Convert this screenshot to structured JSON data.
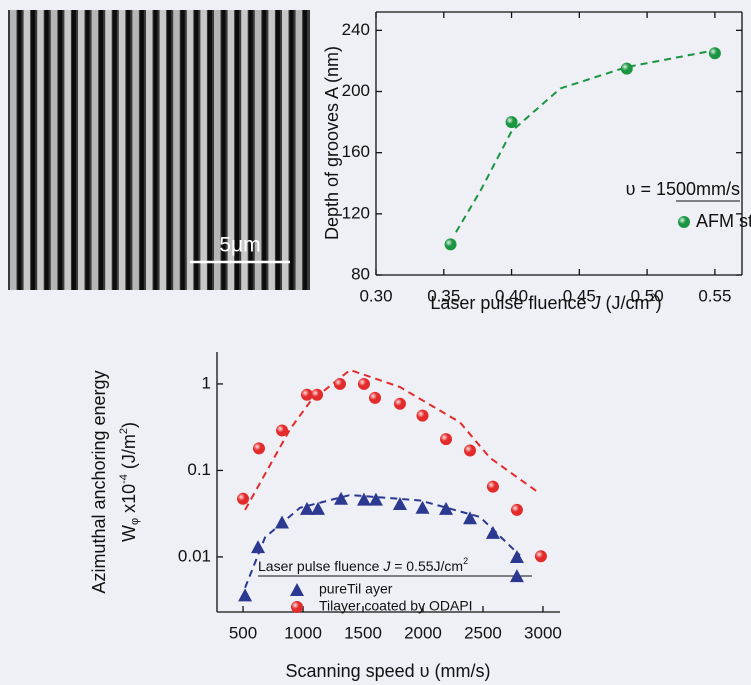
{
  "image": {
    "scale_label": "5μm"
  },
  "chart_data": [
    {
      "type": "scatter",
      "x_label": [
        "Laser pulse fluence ",
        "J",
        " (J/cm",
        "2",
        ")"
      ],
      "y_label": "Depth of grooves A (nm)",
      "xlim": [
        0.3,
        0.57
      ],
      "ylim": [
        80,
        252
      ],
      "xticks": [
        {
          "value": 0.3,
          "label": "0.30"
        },
        0.35,
        {
          "value": 0.4,
          "label": "0.40"
        },
        0.45,
        {
          "value": 0.5,
          "label": "0.50"
        },
        0.55
      ],
      "yticks": [
        80,
        120,
        160,
        200,
        240
      ],
      "log_y": false,
      "frame": true,
      "legend_title": "υ = 1500mm/s",
      "series": [
        {
          "name": "AFM study",
          "color": "#1a9641",
          "marker": "circle",
          "x": [
            0.355,
            0.4,
            0.485,
            0.55
          ],
          "values": [
            100,
            180,
            215,
            225
          ],
          "fit": {
            "x": [
              0.359,
              0.377,
              0.4,
              0.436,
              0.485,
              0.55
            ],
            "y": [
              108,
              135,
              174,
              202,
              216,
              227
            ]
          }
        }
      ]
    },
    {
      "type": "scatter",
      "x_label": "Scanning speed υ (mm/s)",
      "y_label": [
        "Azimuthal anchoring energy",
        "W",
        "φ",
        " x10",
        "-4",
        " (J/m",
        "2",
        ")"
      ],
      "xlim": [
        283,
        3142
      ],
      "ylim": [
        0.00231,
        2.34
      ],
      "xticks": [
        500,
        1000,
        1500,
        2000,
        2500,
        3000
      ],
      "yticks": [
        0.01,
        0.1,
        1
      ],
      "log_y": true,
      "frame": false,
      "legend_title": [
        "Laser pulse fluence ",
        "J",
        " = 0.55J/cm",
        "2"
      ],
      "series": [
        {
          "name": "pureTil ayer",
          "color": "#2b3990",
          "marker": "triangle",
          "x": [
            517,
            625,
            825,
            1033,
            1125,
            1317,
            1508,
            1608,
            1808,
            1996,
            2192,
            2392,
            2583,
            2783,
            2783
          ],
          "values": [
            0.0036,
            0.013,
            0.025,
            0.036,
            0.036,
            0.047,
            0.046,
            0.046,
            0.041,
            0.037,
            0.036,
            0.028,
            0.019,
            0.01,
            0.006
          ],
          "fit": {
            "x": [
              517,
              683,
              975,
              1392,
              1975,
              2475,
              2808
            ],
            "y": [
              0.0044,
              0.0168,
              0.037,
              0.052,
              0.045,
              0.029,
              0.0104
            ]
          }
        },
        {
          "name": "Tilayer coated by ODAPI",
          "color": "#e32b2b",
          "marker": "circle",
          "x": [
            500,
            633,
            825,
            1033,
            1117,
            1308,
            1508,
            1600,
            1808,
            1996,
            2192,
            2392,
            2583,
            2783,
            2983
          ],
          "values": [
            0.047,
            0.18,
            0.29,
            0.75,
            0.75,
            1.0,
            1.0,
            0.69,
            0.59,
            0.43,
            0.23,
            0.17,
            0.065,
            0.035,
            0.0102
          ],
          "fit": {
            "x": [
              517,
              892,
              1058,
              1392,
              1808,
              2308,
              2558,
              2975
            ],
            "y": [
              0.035,
              0.3,
              0.62,
              1.45,
              0.92,
              0.36,
              0.14,
              0.054
            ]
          }
        }
      ]
    }
  ]
}
